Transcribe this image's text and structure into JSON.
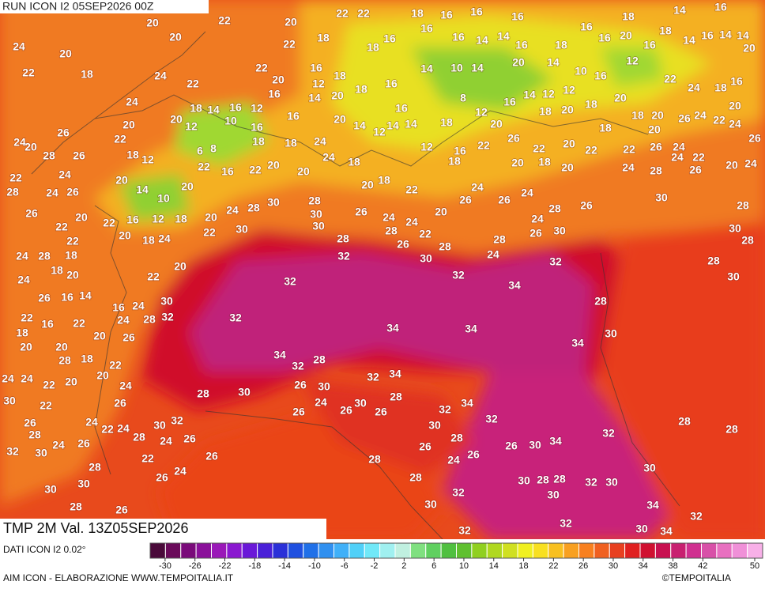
{
  "header": {
    "run": "RUN ICON I2 05SEP2026 00Z"
  },
  "field": {
    "title": "TMP 2M Val. 13Z05SEP2026"
  },
  "footer": {
    "data_source": "DATI ICON I2 0.02°",
    "credit": "AIM ICON - ELABORAZIONE WWW.TEMPOITALIA.IT",
    "logo": "©TEMPOITALIA"
  },
  "colorbar": {
    "range": [
      -32,
      50
    ],
    "colors": [
      "#4a0a3a",
      "#6a0a5a",
      "#7a0a7a",
      "#8a109a",
      "#9a18b8",
      "#8a18d0",
      "#6a18d8",
      "#4a20d8",
      "#2a30d8",
      "#2050e0",
      "#2070e8",
      "#3090f0",
      "#40b0f8",
      "#50d0f8",
      "#70e8f8",
      "#a0f0f0",
      "#c0f0e0",
      "#80e080",
      "#60d060",
      "#50c040",
      "#60c030",
      "#90d020",
      "#b0d820",
      "#d0e020",
      "#f0f020",
      "#f8e020",
      "#f8c020",
      "#f8a020",
      "#f88020",
      "#f06020",
      "#e84020",
      "#e02020",
      "#d01030",
      "#c81050",
      "#c82070",
      "#d03090",
      "#d850a8",
      "#e870c0",
      "#f090d8",
      "#f8b0e8"
    ],
    "ticks": [
      -30,
      -26,
      -22,
      -18,
      -14,
      -10,
      -6,
      -2,
      2,
      6,
      10,
      14,
      18,
      22,
      26,
      30,
      34,
      38,
      42,
      50
    ]
  },
  "map_labels": [
    22,
    22,
    18,
    18,
    14,
    16,
    20,
    22,
    20,
    16,
    16,
    16,
    16,
    20,
    18,
    16,
    14,
    24,
    20,
    20,
    22,
    18,
    18,
    16,
    16,
    16,
    14,
    14,
    16,
    18,
    16,
    16,
    14,
    14,
    20,
    22,
    18,
    24,
    22,
    22,
    20,
    16,
    12,
    18,
    18,
    16,
    14,
    10,
    14,
    20,
    14,
    10,
    16,
    12,
    22,
    24,
    18,
    16,
    24,
    18,
    14,
    16,
    12,
    16,
    14,
    20,
    16,
    8,
    16,
    14,
    12,
    12,
    18,
    20,
    18,
    20,
    26,
    24,
    22,
    20,
    24,
    26,
    20,
    20,
    22,
    20,
    12,
    10,
    16,
    16,
    20,
    14,
    12,
    14,
    14,
    18,
    12,
    20,
    26,
    18,
    20,
    18,
    20,
    24,
    26,
    28,
    22,
    28,
    24,
    18,
    12,
    6,
    8,
    18,
    18,
    24,
    12,
    16,
    22,
    22,
    20,
    22,
    22,
    26,
    24,
    22,
    26,
    24,
    26,
    20,
    14,
    10,
    20,
    22,
    16,
    22,
    20,
    20,
    24,
    18,
    20,
    18,
    22,
    18,
    20,
    18,
    20,
    24,
    28,
    24,
    26,
    20,
    24,
    26,
    22,
    20,
    22,
    16,
    12,
    18,
    20,
    24,
    28,
    30,
    28,
    30,
    26,
    24,
    24,
    20,
    26,
    24,
    26,
    24,
    24,
    28,
    26,
    30,
    28,
    24,
    28,
    22,
    18,
    20,
    18,
    24,
    22,
    30,
    30,
    28,
    32,
    28,
    26,
    22,
    30,
    28,
    24,
    28,
    26,
    30,
    30,
    28,
    20,
    18,
    20,
    22,
    24,
    32,
    32,
    34,
    32,
    28,
    30,
    26,
    16,
    14,
    16,
    24,
    30,
    32,
    32,
    28,
    24,
    22,
    16,
    22,
    20,
    26,
    18,
    20,
    20,
    28,
    18,
    22,
    34,
    34,
    34,
    28,
    30,
    24,
    24,
    22,
    20,
    20,
    24,
    34,
    32,
    28,
    32,
    34,
    26,
    30,
    28,
    30,
    30,
    22,
    26,
    24,
    26,
    30,
    26,
    28,
    32,
    34,
    32,
    26,
    28,
    24,
    22,
    24,
    30,
    32,
    26,
    28,
    24,
    26,
    30,
    28,
    32,
    28,
    28,
    32,
    30,
    24,
    26,
    26,
    24,
    26,
    26,
    30,
    34,
    22,
    26,
    28,
    24,
    26,
    28,
    28,
    30,
    28,
    28,
    32,
    30,
    30,
    30,
    30,
    32,
    30,
    28,
    26,
    30,
    34,
    32,
    32,
    32,
    30,
    34
  ]
}
